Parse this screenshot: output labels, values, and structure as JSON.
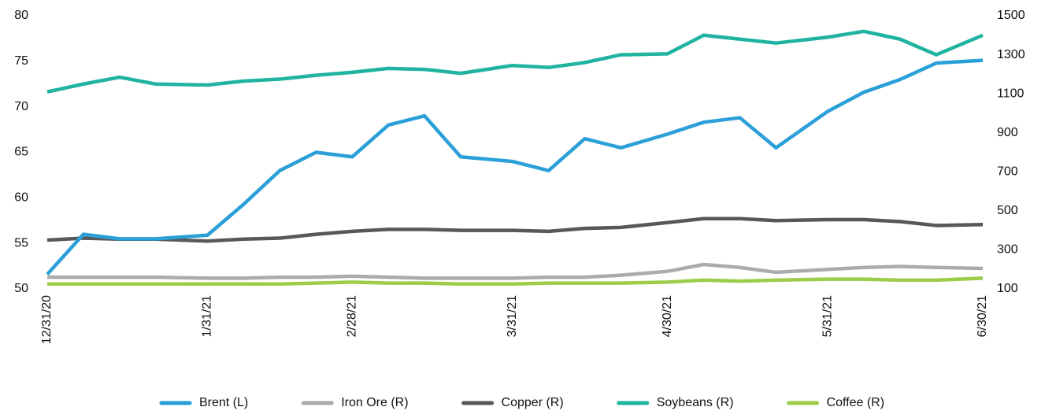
{
  "chart_data": {
    "type": "line",
    "x": [
      "12/31/20",
      "1/7/21",
      "1/14/21",
      "1/21/21",
      "1/31/21",
      "2/7/21",
      "2/14/21",
      "2/21/21",
      "2/28/21",
      "3/7/21",
      "3/14/21",
      "3/21/21",
      "3/31/21",
      "4/7/21",
      "4/14/21",
      "4/21/21",
      "4/30/21",
      "5/7/21",
      "5/14/21",
      "5/21/21",
      "5/31/21",
      "6/7/21",
      "6/14/21",
      "6/21/21",
      "6/30/21"
    ],
    "xlim": [
      "12/31/20",
      "6/30/21"
    ],
    "xticks": [
      "12/31/20",
      "1/31/21",
      "2/28/21",
      "3/31/21",
      "4/30/21",
      "5/31/21",
      "6/30/21"
    ],
    "ylim": [
      50,
      80
    ],
    "yticks": [
      50,
      55,
      60,
      65,
      70,
      75,
      80
    ],
    "y2lim": [
      100,
      1500
    ],
    "y2ticks": [
      100,
      300,
      500,
      700,
      900,
      1100,
      1300,
      1500
    ],
    "legend": "bottom",
    "series": [
      {
        "name": "Brent (L)",
        "color": "#2a9fd8",
        "values": [
          51.6,
          56,
          55.5,
          55.5,
          55.9,
          59.3,
          63,
          65,
          64.5,
          68,
          69,
          64.5,
          64,
          63,
          66.5,
          65.5,
          67,
          68.3,
          68.8,
          65.5,
          69.5,
          71.6,
          73,
          74.8,
          75.1
        ]
      },
      {
        "name": "Iron Ore (R)",
        "color": "#ababab",
        "axis": "y2",
        "values": [
          160,
          160,
          160,
          160,
          155,
          155,
          160,
          160,
          165,
          160,
          155,
          155,
          155,
          160,
          160,
          170,
          190,
          225,
          210,
          185,
          200,
          210,
          215,
          210,
          205
        ]
      },
      {
        "name": "Copper (R)",
        "color": "#58585c",
        "axis": "y2",
        "values": [
          350,
          360,
          355,
          355,
          345,
          355,
          360,
          380,
          395,
          405,
          405,
          400,
          400,
          395,
          410,
          415,
          440,
          460,
          460,
          450,
          455,
          455,
          445,
          425,
          430
        ]
      },
      {
        "name": "Soybeans (R)",
        "color": "#1fb3a0",
        "axis": "y2",
        "values": [
          1110,
          1150,
          1185,
          1150,
          1145,
          1165,
          1175,
          1195,
          1210,
          1230,
          1225,
          1205,
          1245,
          1235,
          1260,
          1300,
          1305,
          1400,
          1380,
          1360,
          1390,
          1420,
          1380,
          1300,
          1400
        ]
      },
      {
        "name": "Coffee (R)",
        "color": "#9ccc4a",
        "axis": "y2",
        "values": [
          125,
          125,
          125,
          125,
          125,
          125,
          125,
          130,
          135,
          130,
          130,
          125,
          125,
          130,
          130,
          130,
          135,
          145,
          140,
          145,
          150,
          150,
          145,
          145,
          155
        ]
      }
    ]
  }
}
